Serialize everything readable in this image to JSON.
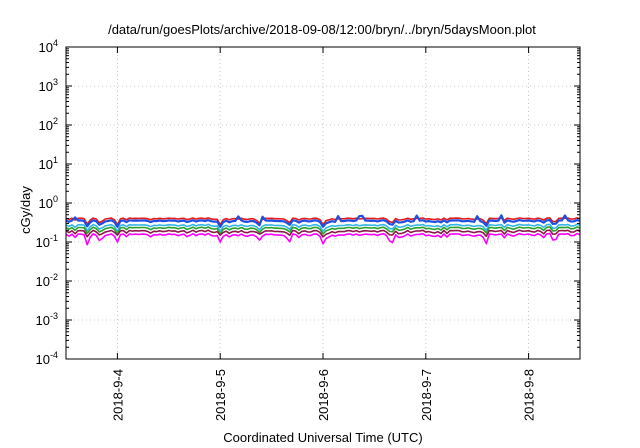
{
  "chart_data": {
    "type": "line",
    "title": "/data/run/goesPlots/archive/2018-09-08/12:00/bryn/../bryn/5daysMoon.plot",
    "xlabel": "Coordinated Universal Time (UTC)",
    "ylabel": "cGy/day",
    "y_scale": "log",
    "ylim": [
      0.0001,
      10000
    ],
    "y_ticks": [
      {
        "value": 0.0001,
        "base": "10",
        "exp": "-4"
      },
      {
        "value": 0.001,
        "base": "10",
        "exp": "-3"
      },
      {
        "value": 0.01,
        "base": "10",
        "exp": "-2"
      },
      {
        "value": 0.1,
        "base": "10",
        "exp": "-1"
      },
      {
        "value": 1,
        "base": "10",
        "exp": "0"
      },
      {
        "value": 10,
        "base": "10",
        "exp": "1"
      },
      {
        "value": 100,
        "base": "10",
        "exp": "2"
      },
      {
        "value": 1000,
        "base": "10",
        "exp": "3"
      },
      {
        "value": 10000,
        "base": "10",
        "exp": "4"
      }
    ],
    "xlim": [
      "2018-09-03 12:00",
      "2018-09-08 12:00"
    ],
    "x_ticks": [
      "2018-9-4",
      "2018-9-5",
      "2018-9-6",
      "2018-9-7",
      "2018-9-8"
    ],
    "x_tick_values": [
      "2018-09-04 00:00",
      "2018-09-05 00:00",
      "2018-09-06 00:00",
      "2018-09-07 00:00",
      "2018-09-08 00:00"
    ],
    "grid": true,
    "series": [
      {
        "color": "#e41a1c",
        "level": 0.4,
        "x": [
          "2018-09-03 12:00",
          "2018-09-08 12:00"
        ],
        "y": [
          0.4,
          0.4
        ]
      },
      {
        "color": "#1f4fe0",
        "level": 0.35,
        "x": [
          "2018-09-03 12:00",
          "2018-09-08 12:00"
        ],
        "y": [
          0.35,
          0.35
        ]
      },
      {
        "color": "#33b5e5",
        "level": 0.27,
        "x": [
          "2018-09-03 12:00",
          "2018-09-08 12:00"
        ],
        "y": [
          0.27,
          0.27
        ]
      },
      {
        "color": "#2ca02c",
        "level": 0.23,
        "x": [
          "2018-09-03 12:00",
          "2018-09-08 12:00"
        ],
        "y": [
          0.23,
          0.23
        ]
      },
      {
        "color": "#8b1a4a",
        "level": 0.19,
        "x": [
          "2018-09-03 12:00",
          "2018-09-08 12:00"
        ],
        "y": [
          0.19,
          0.19
        ]
      },
      {
        "color": "#ff00ff",
        "level": 0.155,
        "x": [
          "2018-09-03 12:00",
          "2018-09-08 12:00"
        ],
        "y": [
          0.155,
          0.155
        ]
      }
    ],
    "dips": [
      {
        "x": "2018-09-03 17:00",
        "y": 0.08
      },
      {
        "x": "2018-09-03 20:00",
        "y": 0.09
      },
      {
        "x": "2018-09-04 00:00",
        "y": 0.1
      },
      {
        "x": "2018-09-05 00:00",
        "y": 0.1
      },
      {
        "x": "2018-09-05 09:00",
        "y": 0.1
      },
      {
        "x": "2018-09-05 16:00",
        "y": 0.08
      },
      {
        "x": "2018-09-06 00:00",
        "y": 0.09
      },
      {
        "x": "2018-09-06 16:00",
        "y": 0.07
      },
      {
        "x": "2018-09-07 14:00",
        "y": 0.08
      },
      {
        "x": "2018-09-08 06:00",
        "y": 0.08
      }
    ]
  }
}
